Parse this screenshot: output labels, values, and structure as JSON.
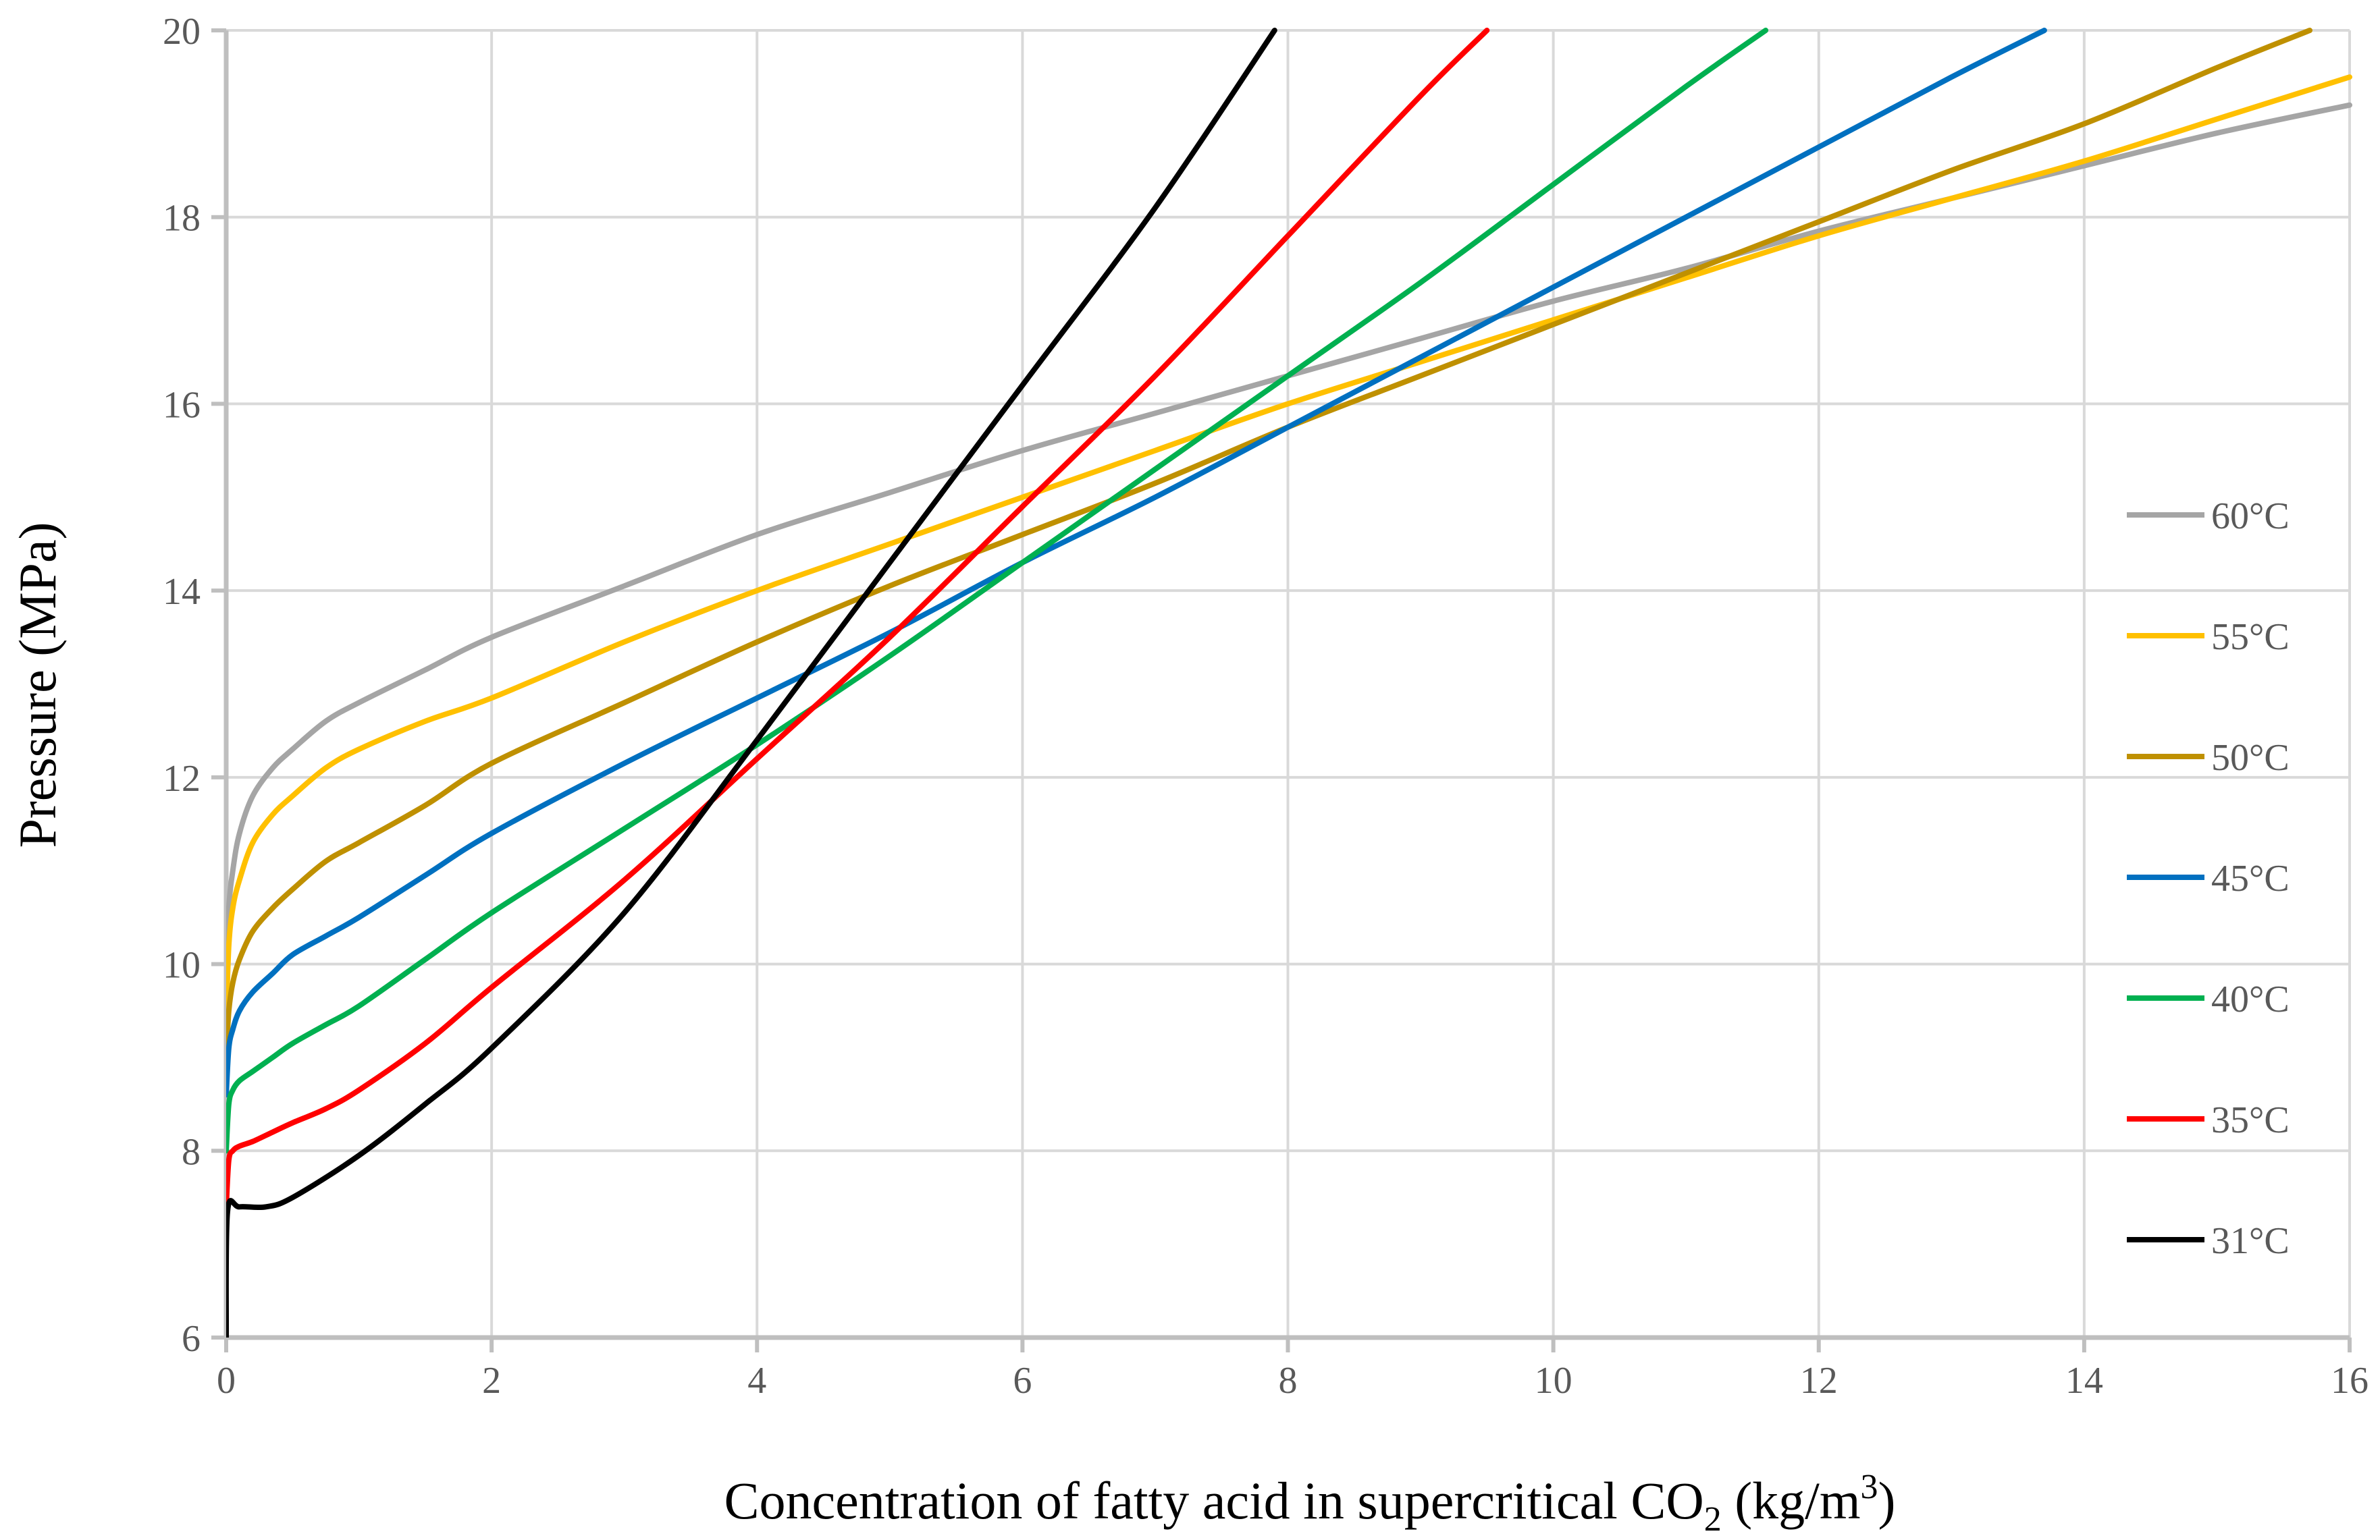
{
  "chart_data": {
    "type": "line",
    "title": "",
    "xlabel": {
      "main": "Concentration of fatty acid in supercritical CO",
      "sub": "2",
      "mid": " (kg/m",
      "sup": "3",
      "end": ")"
    },
    "ylabel": "Pressure (MPa)",
    "xlim": [
      0,
      16
    ],
    "ylim": [
      6,
      20
    ],
    "xticks": [
      "0",
      "2",
      "4",
      "6",
      "8",
      "10",
      "12",
      "14",
      "16"
    ],
    "yticks": [
      "6",
      "8",
      "10",
      "12",
      "14",
      "16",
      "18",
      "20"
    ],
    "grid": true,
    "legend_position": "right",
    "series": [
      {
        "name": "60°C",
        "color": "#a5a5a5",
        "points": [
          [
            0,
            9.8
          ],
          [
            0.02,
            10.6
          ],
          [
            0.05,
            11.0
          ],
          [
            0.1,
            11.4
          ],
          [
            0.2,
            11.8
          ],
          [
            0.35,
            12.1
          ],
          [
            0.5,
            12.3
          ],
          [
            0.75,
            12.6
          ],
          [
            1,
            12.8
          ],
          [
            1.5,
            13.15
          ],
          [
            2,
            13.5
          ],
          [
            3,
            14.05
          ],
          [
            4,
            14.6
          ],
          [
            5,
            15.05
          ],
          [
            6,
            15.5
          ],
          [
            7,
            15.9
          ],
          [
            8,
            16.3
          ],
          [
            9,
            16.7
          ],
          [
            10,
            17.1
          ],
          [
            11,
            17.45
          ],
          [
            12,
            17.85
          ],
          [
            13,
            18.2
          ],
          [
            14,
            18.55
          ],
          [
            15,
            18.9
          ],
          [
            16,
            19.2
          ]
        ]
      },
      {
        "name": "55°C",
        "color": "#ffc000",
        "points": [
          [
            0,
            9.4
          ],
          [
            0.02,
            10.2
          ],
          [
            0.05,
            10.6
          ],
          [
            0.1,
            10.9
          ],
          [
            0.2,
            11.3
          ],
          [
            0.35,
            11.6
          ],
          [
            0.5,
            11.8
          ],
          [
            0.75,
            12.1
          ],
          [
            1,
            12.3
          ],
          [
            1.5,
            12.6
          ],
          [
            2,
            12.85
          ],
          [
            3,
            13.45
          ],
          [
            4,
            14.0
          ],
          [
            5,
            14.5
          ],
          [
            6,
            15.0
          ],
          [
            7,
            15.5
          ],
          [
            8,
            16.0
          ],
          [
            9,
            16.45
          ],
          [
            10,
            16.9
          ],
          [
            11,
            17.35
          ],
          [
            12,
            17.8
          ],
          [
            13,
            18.2
          ],
          [
            14,
            18.6
          ],
          [
            15,
            19.05
          ],
          [
            16,
            19.5
          ]
        ]
      },
      {
        "name": "50°C",
        "color": "#bf9000",
        "points": [
          [
            0,
            9.0
          ],
          [
            0.02,
            9.5
          ],
          [
            0.05,
            9.8
          ],
          [
            0.1,
            10.05
          ],
          [
            0.2,
            10.35
          ],
          [
            0.35,
            10.6
          ],
          [
            0.5,
            10.8
          ],
          [
            0.75,
            11.1
          ],
          [
            1,
            11.3
          ],
          [
            1.5,
            11.7
          ],
          [
            2,
            12.15
          ],
          [
            3,
            12.8
          ],
          [
            4,
            13.45
          ],
          [
            5,
            14.05
          ],
          [
            6,
            14.6
          ],
          [
            7,
            15.15
          ],
          [
            8,
            15.75
          ],
          [
            9,
            16.3
          ],
          [
            10,
            16.85
          ],
          [
            11,
            17.4
          ],
          [
            12,
            17.95
          ],
          [
            13,
            18.5
          ],
          [
            14,
            19.0
          ],
          [
            15,
            19.6
          ],
          [
            15.7,
            20.0
          ]
        ]
      },
      {
        "name": "45°C",
        "color": "#0070c0",
        "points": [
          [
            0,
            8.6
          ],
          [
            0.02,
            9.1
          ],
          [
            0.05,
            9.3
          ],
          [
            0.1,
            9.5
          ],
          [
            0.2,
            9.7
          ],
          [
            0.35,
            9.9
          ],
          [
            0.5,
            10.1
          ],
          [
            0.75,
            10.3
          ],
          [
            1,
            10.5
          ],
          [
            1.5,
            10.95
          ],
          [
            2,
            11.4
          ],
          [
            3,
            12.15
          ],
          [
            4,
            12.85
          ],
          [
            5,
            13.55
          ],
          [
            6,
            14.3
          ],
          [
            7,
            15.0
          ],
          [
            8,
            15.75
          ],
          [
            9,
            16.5
          ],
          [
            10,
            17.25
          ],
          [
            11,
            18.0
          ],
          [
            12,
            18.75
          ],
          [
            13,
            19.5
          ],
          [
            13.7,
            20.0
          ]
        ]
      },
      {
        "name": "40°C",
        "color": "#00b050",
        "points": [
          [
            0,
            8.0
          ],
          [
            0.02,
            8.5
          ],
          [
            0.05,
            8.65
          ],
          [
            0.1,
            8.75
          ],
          [
            0.2,
            8.85
          ],
          [
            0.35,
            9.0
          ],
          [
            0.5,
            9.15
          ],
          [
            0.75,
            9.35
          ],
          [
            1,
            9.55
          ],
          [
            1.5,
            10.05
          ],
          [
            2,
            10.55
          ],
          [
            3,
            11.45
          ],
          [
            4,
            12.35
          ],
          [
            5,
            13.3
          ],
          [
            6,
            14.3
          ],
          [
            7,
            15.3
          ],
          [
            8,
            16.3
          ],
          [
            9,
            17.3
          ],
          [
            10,
            18.35
          ],
          [
            11,
            19.4
          ],
          [
            11.6,
            20.0
          ]
        ]
      },
      {
        "name": "35°C",
        "color": "#ff0000",
        "points": [
          [
            0,
            7.4
          ],
          [
            0.02,
            7.9
          ],
          [
            0.05,
            8.0
          ],
          [
            0.1,
            8.05
          ],
          [
            0.2,
            8.1
          ],
          [
            0.35,
            8.2
          ],
          [
            0.5,
            8.3
          ],
          [
            0.75,
            8.45
          ],
          [
            1,
            8.65
          ],
          [
            1.5,
            9.15
          ],
          [
            2,
            9.75
          ],
          [
            3,
            10.9
          ],
          [
            4,
            12.2
          ],
          [
            5,
            13.5
          ],
          [
            6,
            14.9
          ],
          [
            7,
            16.3
          ],
          [
            8,
            17.8
          ],
          [
            9,
            19.3
          ],
          [
            9.5,
            20.0
          ]
        ]
      },
      {
        "name": "31°C",
        "color": "#000000",
        "points": [
          [
            0,
            6.0
          ],
          [
            0.01,
            7.35
          ],
          [
            0.1,
            7.4
          ],
          [
            0.3,
            7.4
          ],
          [
            0.5,
            7.5
          ],
          [
            1,
            7.95
          ],
          [
            1.5,
            8.5
          ],
          [
            2,
            9.1
          ],
          [
            3,
            10.55
          ],
          [
            4,
            12.4
          ],
          [
            5,
            14.3
          ],
          [
            6,
            16.2
          ],
          [
            7,
            18.1
          ],
          [
            7.9,
            20.0
          ]
        ]
      }
    ]
  }
}
